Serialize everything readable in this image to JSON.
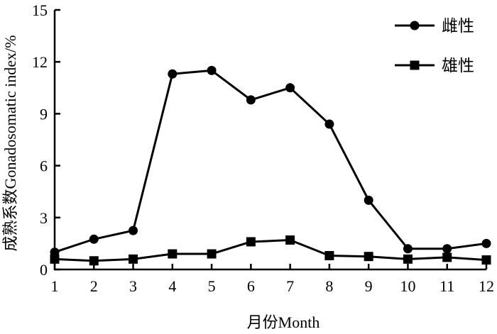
{
  "chart_data": {
    "type": "line",
    "xlabel": "月份Month",
    "ylabel": "成熟系数Gonadosomatic index/%",
    "x": [
      1,
      2,
      3,
      4,
      5,
      6,
      7,
      8,
      9,
      10,
      11,
      12
    ],
    "xlim": [
      1,
      12
    ],
    "ylim": [
      0,
      15
    ],
    "yticks": [
      0,
      3,
      6,
      9,
      12,
      15
    ],
    "grid": false,
    "legend_position": "top-right",
    "series": [
      {
        "name": "雌性",
        "marker": "circle",
        "color": "#000000",
        "values": [
          1.0,
          1.75,
          2.25,
          11.3,
          11.5,
          9.8,
          10.5,
          8.4,
          4.0,
          1.2,
          1.2,
          1.5
        ]
      },
      {
        "name": "雄性",
        "marker": "square",
        "color": "#000000",
        "values": [
          0.6,
          0.5,
          0.6,
          0.9,
          0.9,
          1.6,
          1.7,
          0.8,
          0.75,
          0.6,
          0.7,
          0.55
        ]
      }
    ]
  }
}
